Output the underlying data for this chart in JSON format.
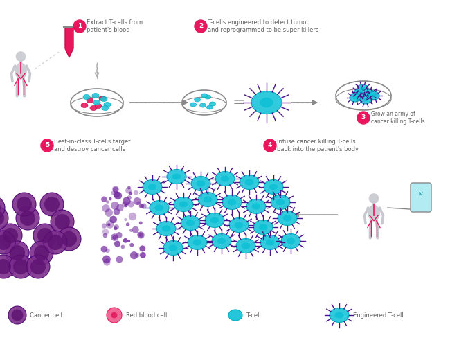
{
  "bg_color": "#ffffff",
  "pink": "#e8175d",
  "light_pink": "#f06292",
  "teal": "#26c6da",
  "purple": "#6a1b9a",
  "purple_cell": "#7b1fa2",
  "purple_dark": "#4a148c",
  "gray": "#9e9e9e",
  "dark_gray": "#616161",
  "arrow_gray": "#aaaaaa",
  "step1_text": "Extract T-cells from\npatient's blood",
  "step2_text": "T-cells engineered to detect tumor\nand reprogrammed to be super-killers",
  "step3_text": "Grow an army of\ncancer killing T-cells",
  "step4_text": "Infuse cancer killing T-cells\nback into the patient's body",
  "step5_text": "Best-in-class T-cells target\nand destroy cancer cells",
  "legend_cancer": "Cancer cell",
  "legend_rbc": "Red blood cell",
  "legend_tcell": "T-cell",
  "legend_eng": "Engineered T-cell"
}
